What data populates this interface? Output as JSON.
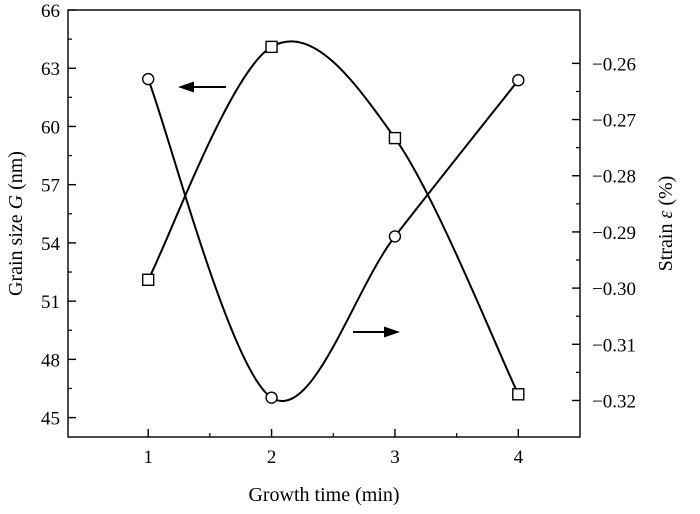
{
  "chart_data": {
    "type": "line",
    "title": "",
    "x": [
      1,
      2,
      3,
      4
    ],
    "xlim": [
      0.35,
      4.5
    ],
    "xticks": [
      1,
      2,
      3,
      4
    ],
    "xlabel": "Growth time (min)",
    "left_axis": {
      "label_parts": [
        "Grain size ",
        "G",
        " (nm)"
      ],
      "lim": [
        44,
        66
      ],
      "ticks": [
        45,
        48,
        51,
        54,
        57,
        60,
        63,
        66
      ]
    },
    "right_axis": {
      "label_parts": [
        "Strain ",
        "ε",
        " (%)"
      ],
      "lim": [
        -0.3265,
        -0.2505
      ],
      "ticks": [
        "−0.26",
        "−0.27",
        "−0.28",
        "−0.29",
        "−0.30",
        "−0.31",
        "−0.32"
      ],
      "tick_values": [
        -0.26,
        -0.27,
        -0.28,
        -0.29,
        -0.3,
        -0.31,
        -0.32
      ]
    },
    "series": [
      {
        "axis": "left",
        "marker": "square",
        "values": [
          52.1,
          64.1,
          59.4,
          46.2
        ]
      },
      {
        "axis": "right",
        "marker": "circle",
        "values": [
          -0.2628,
          -0.3195,
          -0.2908,
          -0.263
        ]
      }
    ],
    "annotations": [
      {
        "type": "arrow",
        "direction": "left",
        "points_to": "left-axis series"
      },
      {
        "type": "arrow",
        "direction": "right",
        "points_to": "right-axis series"
      }
    ],
    "grid": false,
    "colors": {
      "line": "#000000",
      "marker_fill": "#ffffff"
    }
  }
}
